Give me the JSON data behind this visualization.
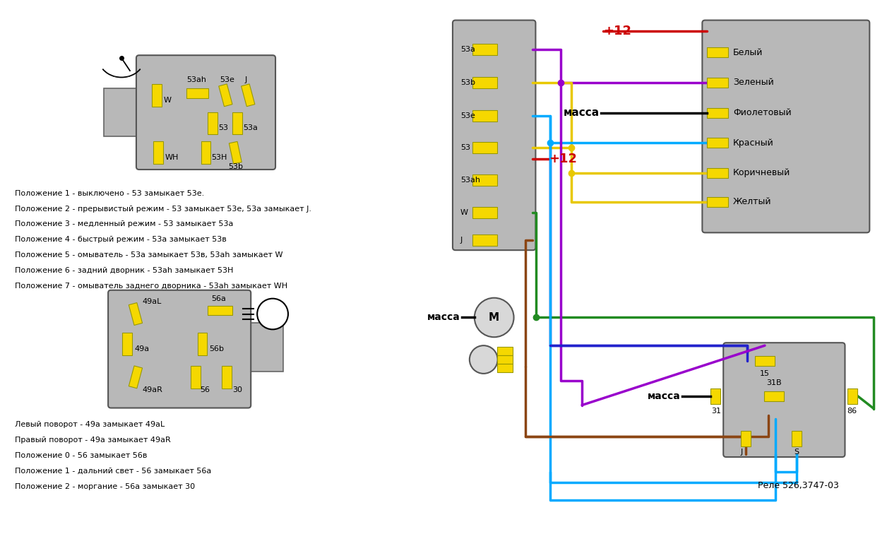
{
  "bg_color": "#ffffff",
  "texts_left1": [
    "Положение 1 - выключено - 53 замыкает 53е.",
    "Положение 2 - прерывистый режим - 53 замыкает 53е, 53а замыкает J.",
    "Положение 3 - медленный режим - 53 замыкает 53а",
    "Положение 4 - быстрый режим - 53а замыкает 53в",
    "Положение 5 - омыватель - 53а замыкает 53в, 53аh замыкает W",
    "Положение 6 - задний дворник - 53аh замыкает 53Н",
    "Положение 7 - омыватель заднего дворника - 53аh замыкает WH"
  ],
  "texts_left2": [
    "Левый поворот - 49а замыкает 49аL",
    "Правый поворот - 49а замыкает 49аR",
    "Положение 0 - 56 замыкает 56в",
    "Положение 1 - дальний свет - 56 замыкает 56а",
    "Положение 2 - моргание - 56а замыкает 30"
  ],
  "rele_label": "Реле 526,3747-03",
  "wire_lw": 2.5
}
